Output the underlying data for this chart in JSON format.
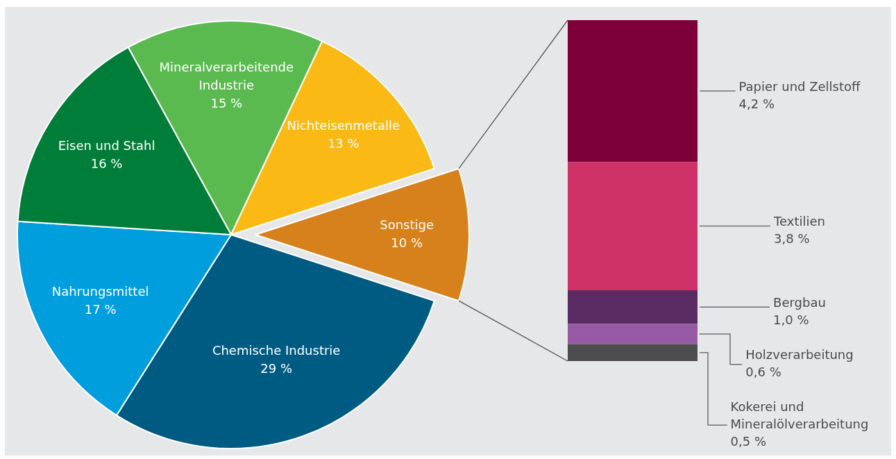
{
  "chart_data": [
    {
      "type": "pie",
      "categories": [
        "Mineralverarbeitende Industrie",
        "Nichteisenmetalle",
        "Sonstige",
        "Chemische Industrie",
        "Nahrungsmittel",
        "Eisen und Stahl"
      ],
      "values": [
        15,
        13,
        10,
        29,
        17,
        16
      ],
      "colors": [
        "#5bba4f",
        "#fbb916",
        "#d6811b",
        "#005b82",
        "#009edc",
        "#007d38"
      ],
      "value_labels": [
        "15 %",
        "13 %",
        "10 %",
        "29 %",
        "17 %",
        "16 %"
      ]
    },
    {
      "type": "bar",
      "stacked": true,
      "tick_labels": false,
      "categories": [
        null
      ],
      "series": [
        {
          "name": "Kokerei und Mineralölverarbeitung",
          "color": "#4d4d4f",
          "values": [
            0.5
          ],
          "value_labels": [
            "0,5 %"
          ]
        },
        {
          "name": "Holzverarbeitung",
          "color": "#975ba5",
          "values": [
            0.6
          ],
          "value_labels": [
            "0,6 %"
          ]
        },
        {
          "name": "Bergbau",
          "color": "#5b2c63",
          "values": [
            1.0
          ],
          "value_labels": [
            "1,0 %"
          ]
        },
        {
          "name": "Textilien",
          "color": "#ce3266",
          "values": [
            3.8
          ],
          "value_labels": [
            "3,8 %"
          ]
        },
        {
          "name": "Papier und Zellstoff",
          "color": "#7e0038",
          "values": [
            4.2
          ],
          "value_labels": [
            "4,2 %"
          ]
        }
      ]
    }
  ]
}
